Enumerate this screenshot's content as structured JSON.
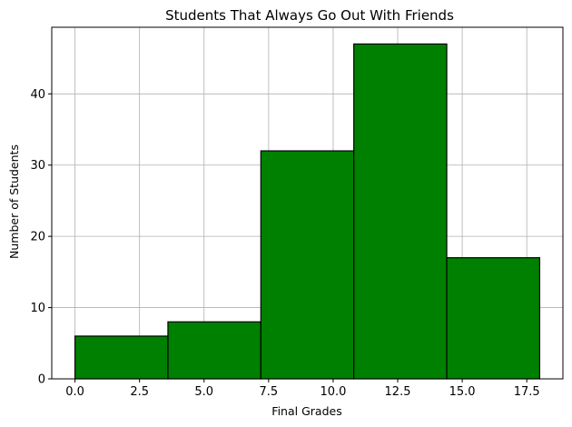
{
  "chart_data": {
    "type": "histogram",
    "title": "Students That Always Go Out With Friends",
    "xlabel": "Final Grades",
    "ylabel": "Number of Students",
    "bins": [
      0.0,
      3.6,
      7.2,
      10.8,
      14.4,
      18.0
    ],
    "values": [
      6,
      8,
      32,
      47,
      17
    ],
    "xlim": [
      -0.9,
      18.9
    ],
    "ylim": [
      0,
      49.35
    ],
    "xticks": [
      0.0,
      2.5,
      5.0,
      7.5,
      10.0,
      12.5,
      15.0,
      17.5
    ],
    "xtick_labels": [
      "0.0",
      "2.5",
      "5.0",
      "7.5",
      "10.0",
      "12.5",
      "15.0",
      "17.5"
    ],
    "yticks": [
      0,
      10,
      20,
      30,
      40
    ],
    "ytick_labels": [
      "0",
      "10",
      "20",
      "30",
      "40"
    ],
    "grid": true,
    "colors": {
      "bar_fill": "#008000",
      "bar_edge": "#000000",
      "grid": "#b0b0b0"
    }
  }
}
